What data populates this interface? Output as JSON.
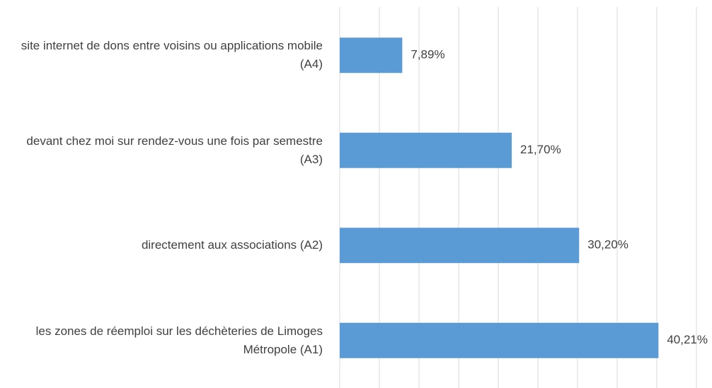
{
  "chart_data": {
    "type": "bar",
    "orientation": "horizontal",
    "categories": [
      "site internet de dons entre voisins ou applications mobile (A4)",
      "devant chez moi sur rendez-vous une fois par semestre (A3)",
      "directement aux associations (A2)",
      "les zones de réemploi sur les déchèteries de Limoges Métropole (A1)"
    ],
    "values": [
      7.89,
      21.7,
      30.2,
      40.21
    ],
    "value_labels": [
      "7,89%",
      "21,70%",
      "30,20%",
      "40,21%"
    ],
    "color": "#5b9bd5",
    "xlim": [
      0,
      45
    ],
    "xticks": [
      0,
      5,
      10,
      15,
      20,
      25,
      30,
      35,
      40,
      45
    ],
    "grid": true
  }
}
